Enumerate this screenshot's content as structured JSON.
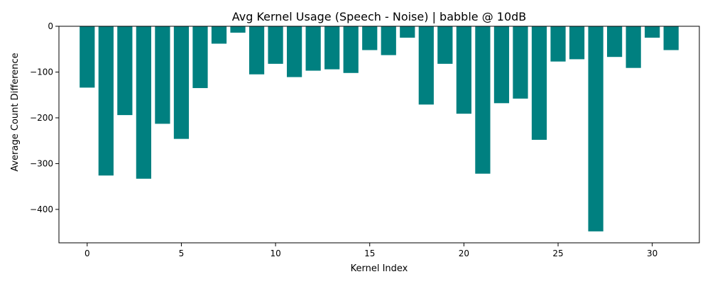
{
  "chart_data": {
    "type": "bar",
    "title": "Avg Kernel Usage (Speech - Noise) | babble @ 10dB",
    "xlabel": "Kernel Index",
    "ylabel": "Average Count Difference",
    "x": [
      0,
      1,
      2,
      3,
      4,
      5,
      6,
      7,
      8,
      9,
      10,
      11,
      12,
      13,
      14,
      15,
      16,
      17,
      18,
      19,
      20,
      21,
      22,
      23,
      24,
      25,
      26,
      27,
      28,
      29,
      30,
      31
    ],
    "values": [
      -134,
      -326,
      -194,
      -333,
      -213,
      -246,
      -135,
      -38,
      -14,
      -105,
      -82,
      -111,
      -97,
      -94,
      -102,
      -52,
      -63,
      -25,
      -171,
      -82,
      -191,
      -322,
      -168,
      -158,
      -248,
      -77,
      -72,
      -448,
      -67,
      -91,
      -25,
      -52
    ],
    "xlim": [
      -1.5,
      32.5
    ],
    "ylim": [
      -473,
      0
    ],
    "xticks": [
      0,
      5,
      10,
      15,
      20,
      25,
      30
    ],
    "yticks": [
      0,
      -100,
      -200,
      -300,
      -400
    ],
    "ytick_labels": [
      "0",
      "−100",
      "−200",
      "−300",
      "−400"
    ],
    "grid": false,
    "bar_color": "#008080"
  }
}
